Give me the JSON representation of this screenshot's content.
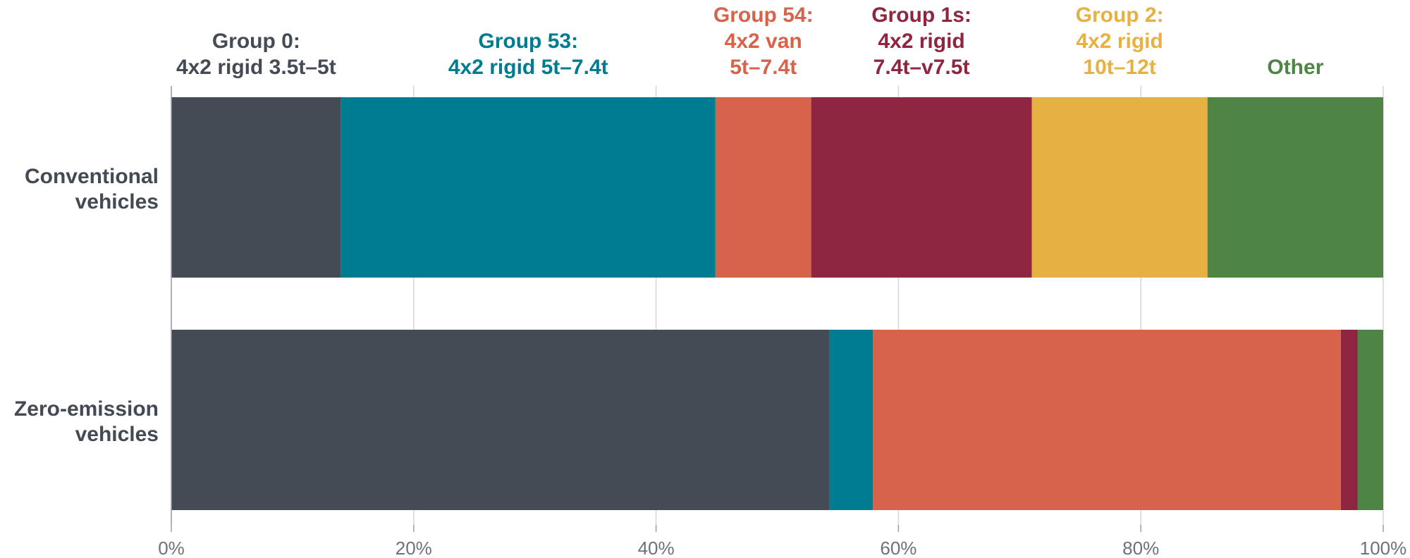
{
  "chart_data": {
    "type": "bar",
    "orientation": "horizontal",
    "stacked": true,
    "normalized": true,
    "categories": [
      "Conventional\nvehicles",
      "Zero-emission\nvehicles"
    ],
    "xlim": [
      0,
      100
    ],
    "xticks": [
      0,
      20,
      40,
      60,
      80,
      100
    ],
    "xtick_labels": [
      "0%",
      "20%",
      "40%",
      "60%",
      "80%",
      "100%"
    ],
    "grid": true,
    "legend_position": "top",
    "series": [
      {
        "name": "Group 0:\n4x2 rigid 3.5t–5t",
        "color": "#444b55",
        "values": [
          14.0,
          54.3
        ]
      },
      {
        "name": "Group 53:\n4x2 rigid 5t–7.4t",
        "color": "#007c91",
        "values": [
          30.9,
          3.6
        ]
      },
      {
        "name": "Group 54:\n4x2 van\n5t–7.4t",
        "color": "#d6634a",
        "values": [
          7.9,
          38.6
        ]
      },
      {
        "name": "Group 1s:\n4x2 rigid\n7.4t–v7.5t",
        "color": "#8e263f",
        "values": [
          18.2,
          1.4
        ]
      },
      {
        "name": "Group 2:\n4x2 rigid\n10t–12t",
        "color": "#e7b043",
        "values": [
          14.5,
          0.0
        ]
      },
      {
        "name": "Other",
        "color": "#4e8545",
        "values": [
          14.5,
          2.1
        ]
      }
    ]
  }
}
